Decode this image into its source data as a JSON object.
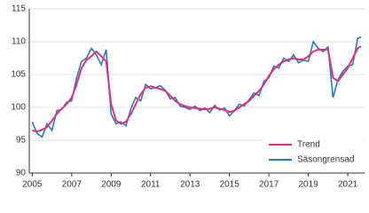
{
  "chart_data": {
    "type": "line",
    "x": [
      2005,
      2005.25,
      2005.5,
      2005.75,
      2006,
      2006.25,
      2006.5,
      2006.75,
      2007,
      2007.25,
      2007.5,
      2007.75,
      2008,
      2008.25,
      2008.5,
      2008.75,
      2009,
      2009.25,
      2009.5,
      2009.75,
      2010,
      2010.25,
      2010.5,
      2010.75,
      2011,
      2011.25,
      2011.5,
      2011.75,
      2012,
      2012.25,
      2012.5,
      2012.75,
      2013,
      2013.25,
      2013.5,
      2013.75,
      2014,
      2014.25,
      2014.5,
      2014.75,
      2015,
      2015.25,
      2015.5,
      2015.75,
      2016,
      2016.25,
      2016.5,
      2016.75,
      2017,
      2017.25,
      2017.5,
      2017.75,
      2018,
      2018.25,
      2018.5,
      2018.75,
      2019,
      2019.25,
      2019.5,
      2019.75,
      2020,
      2020.25,
      2020.5,
      2020.75,
      2021,
      2021.25,
      2021.5,
      2021.67
    ],
    "series": [
      {
        "name": "Trend",
        "color": "#e0317f",
        "values": [
          96.5,
          96.3,
          96.6,
          97.0,
          98.0,
          99.0,
          99.8,
          100.5,
          101.5,
          103.5,
          106.0,
          107.2,
          107.8,
          108.5,
          107.8,
          107.0,
          100.5,
          98.0,
          97.5,
          97.8,
          99.0,
          100.5,
          102.0,
          103.0,
          103.2,
          103.0,
          102.8,
          102.5,
          101.8,
          101.0,
          100.5,
          100.2,
          100.0,
          99.9,
          99.8,
          99.7,
          99.8,
          100.0,
          99.8,
          99.6,
          99.3,
          99.5,
          100.0,
          100.5,
          101.0,
          101.8,
          102.5,
          103.5,
          104.8,
          105.8,
          106.5,
          107.0,
          107.3,
          107.5,
          107.3,
          107.3,
          107.8,
          108.5,
          108.8,
          108.8,
          108.8,
          104.5,
          104.0,
          105.0,
          106.0,
          107.5,
          109.0,
          109.3
        ]
      },
      {
        "name": "Säsongrensad",
        "color": "#2a7ab8",
        "values": [
          97.8,
          96.0,
          95.5,
          97.5,
          96.5,
          99.5,
          99.7,
          100.8,
          101.0,
          104.5,
          107.0,
          107.5,
          109.0,
          108.0,
          106.5,
          108.8,
          99.0,
          97.5,
          97.8,
          97.2,
          99.8,
          101.5,
          101.0,
          103.5,
          102.8,
          103.0,
          103.3,
          102.6,
          101.3,
          101.5,
          100.2,
          100.0,
          99.7,
          100.2,
          99.5,
          99.9,
          99.2,
          100.3,
          99.6,
          99.9,
          98.7,
          99.5,
          100.5,
          100.2,
          101.2,
          102.2,
          101.8,
          104.0,
          104.5,
          106.3,
          106.0,
          107.5,
          107.0,
          108.0,
          106.8,
          107.2,
          107.0,
          110.0,
          109.0,
          108.5,
          109.2,
          101.5,
          104.2,
          105.5,
          106.3,
          106.5,
          110.5,
          110.7
        ]
      }
    ],
    "xlim": [
      2004.85,
      2021.85
    ],
    "xticks": [
      2005,
      2007,
      2009,
      2011,
      2013,
      2015,
      2017,
      2019,
      2021
    ],
    "ylim": [
      90,
      115
    ],
    "yticks": [
      90,
      95,
      100,
      105,
      110,
      115
    ],
    "grid": true,
    "legend": "lower right"
  }
}
